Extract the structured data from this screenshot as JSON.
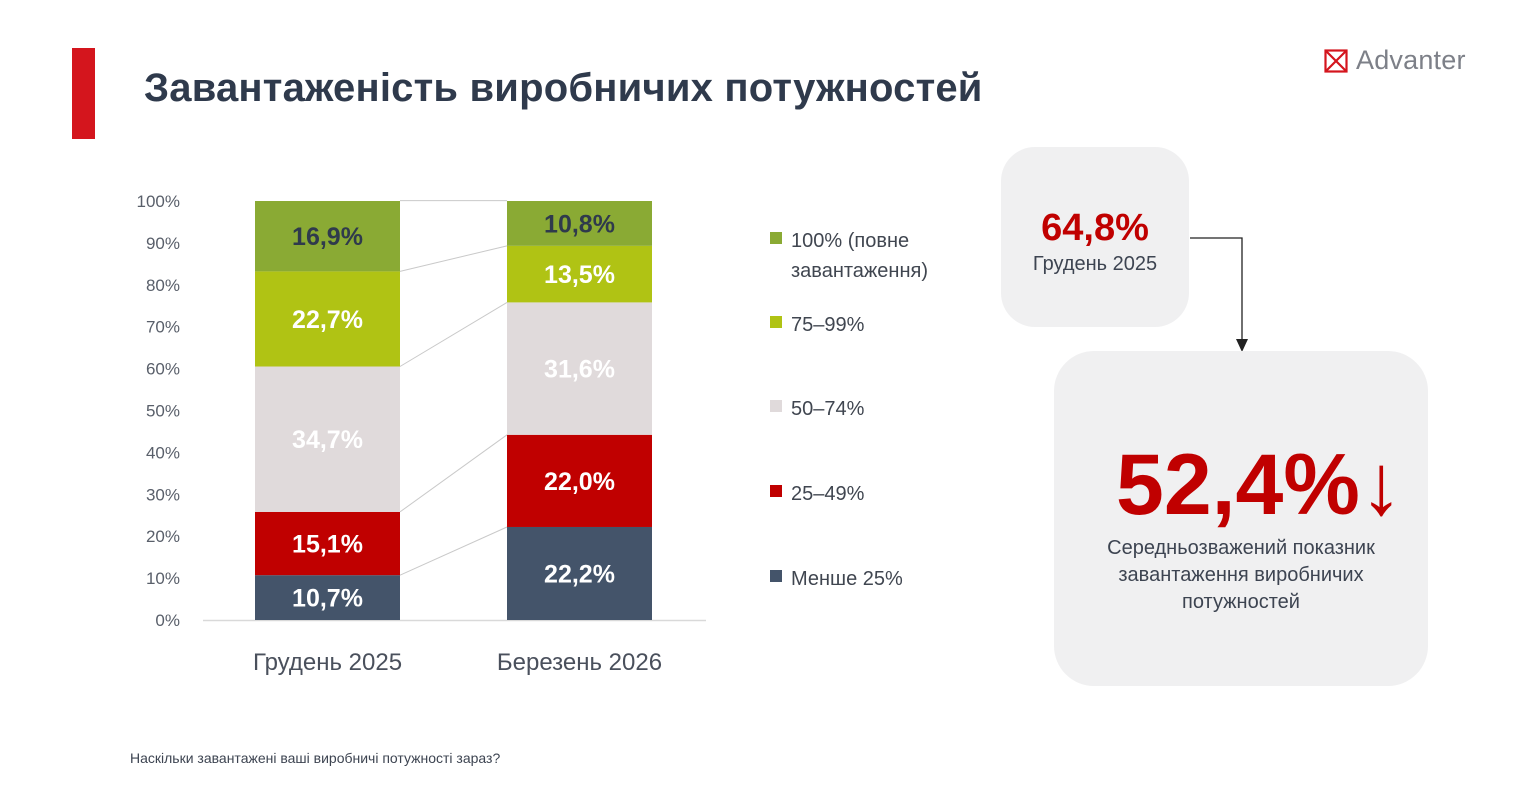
{
  "header": {
    "title": "Завантаженість виробничих потужностей",
    "logo_text": "Advanter"
  },
  "chart_data": {
    "type": "bar",
    "stacked": true,
    "title": "",
    "xlabel": "",
    "ylabel": "",
    "ylim": [
      0,
      100
    ],
    "yticks": [
      "0%",
      "10%",
      "20%",
      "30%",
      "40%",
      "50%",
      "60%",
      "70%",
      "80%",
      "90%",
      "100%"
    ],
    "categories": [
      "Грудень 2025",
      "Березень 2026"
    ],
    "series": [
      {
        "name": "Менше 25%",
        "color": "#44546a",
        "label_color": "#ffffff",
        "values": [
          10.7,
          22.2
        ],
        "labels": [
          "10,7%",
          "22,2%"
        ]
      },
      {
        "name": "25–49%",
        "color": "#c00000",
        "label_color": "#ffffff",
        "values": [
          15.1,
          22.0
        ],
        "labels": [
          "15,1%",
          "22,0%"
        ]
      },
      {
        "name": "50–74%",
        "color": "#e0dadb",
        "label_color": "#ffffff",
        "values": [
          34.7,
          31.6
        ],
        "labels": [
          "34,7%",
          "31,6%"
        ]
      },
      {
        "name": "75–99%",
        "color": "#b0c314",
        "label_color": "#ffffff",
        "values": [
          22.7,
          13.5
        ],
        "labels": [
          "22,7%",
          "13,5%"
        ]
      },
      {
        "name": "100% (повне завантаження)",
        "color": "#8aaa34",
        "label_color": "#2f3a4c",
        "values": [
          16.9,
          10.8
        ],
        "labels": [
          "16,9%",
          "10,8%"
        ]
      }
    ],
    "legend_position": "right"
  },
  "legend": {
    "items": [
      {
        "line1": "100% (повне",
        "line2": "завантаження)",
        "color": "#8aaa34"
      },
      {
        "line1": "75–99%",
        "line2": "",
        "color": "#b0c314"
      },
      {
        "line1": "50–74%",
        "line2": "",
        "color": "#e0dadb"
      },
      {
        "line1": "25–49%",
        "line2": "",
        "color": "#c00000"
      },
      {
        "line1": "Менше 25%",
        "line2": "",
        "color": "#44546a"
      }
    ]
  },
  "kpi": {
    "previous_value": "64,8%",
    "previous_label": "Грудень 2025",
    "current_value": "52,4%↓",
    "current_caption_line1": "Середньозважений показник",
    "current_caption_line2": "завантаження виробничих",
    "current_caption_line3": "потужностей"
  },
  "footnote": "Наскільки завантажені ваші виробничі потужності зараз?",
  "colors": {
    "accent": "#d4151d",
    "brand_red": "#c00000",
    "card_bg": "#f0f0f1"
  }
}
